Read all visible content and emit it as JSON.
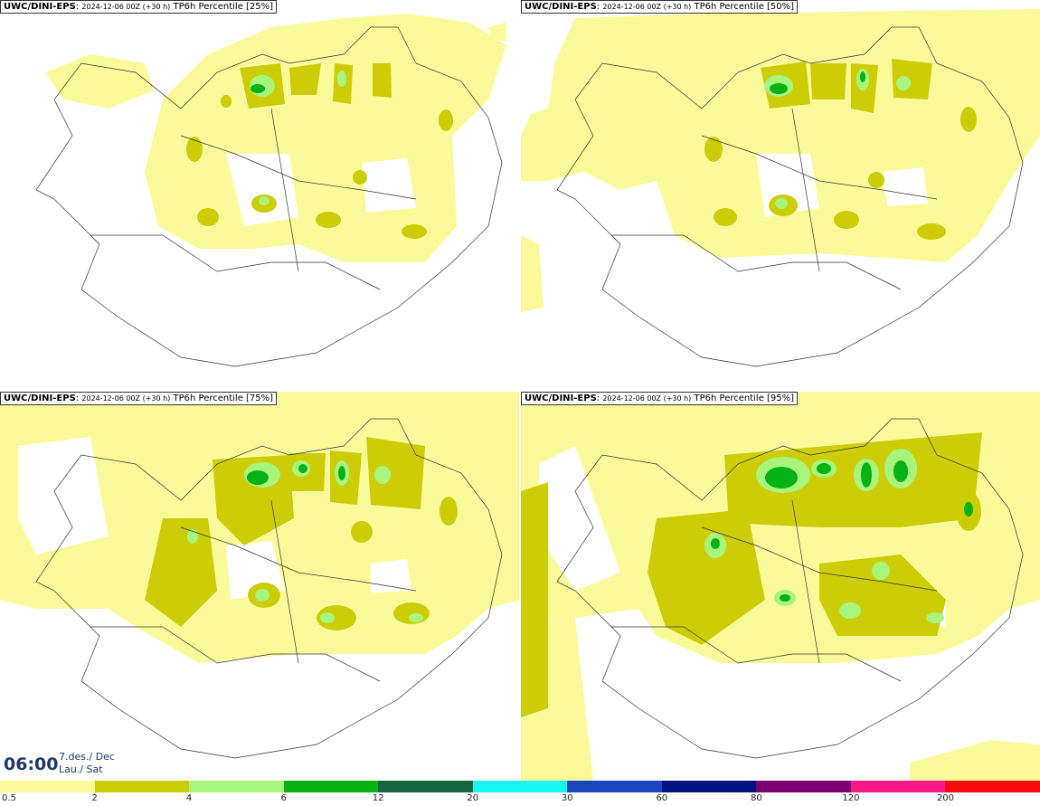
{
  "panels": [
    {
      "model": "UWC/DINI-EPS",
      "run": "2024-12-06 00Z (+30 h)",
      "label": "TP6h Percentile [25%]"
    },
    {
      "model": "UWC/DINI-EPS",
      "run": "2024-12-06 00Z (+30 h)",
      "label": "TP6h Percentile [50%]"
    },
    {
      "model": "UWC/DINI-EPS",
      "run": "2024-12-06 00Z (+30 h)",
      "label": "TP6h Percentile [75%]"
    },
    {
      "model": "UWC/DINI-EPS",
      "run": "2024-12-06 00Z (+30 h)",
      "label": "TP6h Percentile [95%]"
    }
  ],
  "time": {
    "clock": "06:00",
    "date": "7.des./ Dec",
    "day": "Lau./ Sat"
  },
  "colorbar": {
    "ticks": [
      "0.5",
      "2",
      "4",
      "6",
      "12",
      "20",
      "30",
      "60",
      "80",
      "120",
      "200"
    ],
    "colors": [
      "#fbfa9b",
      "#cccd06",
      "#a8f57e",
      "#09b214",
      "#14653d",
      "#17f7f0",
      "#1a47be",
      "#02127e",
      "#7d0072",
      "#f61886",
      "#f80b10"
    ]
  }
}
